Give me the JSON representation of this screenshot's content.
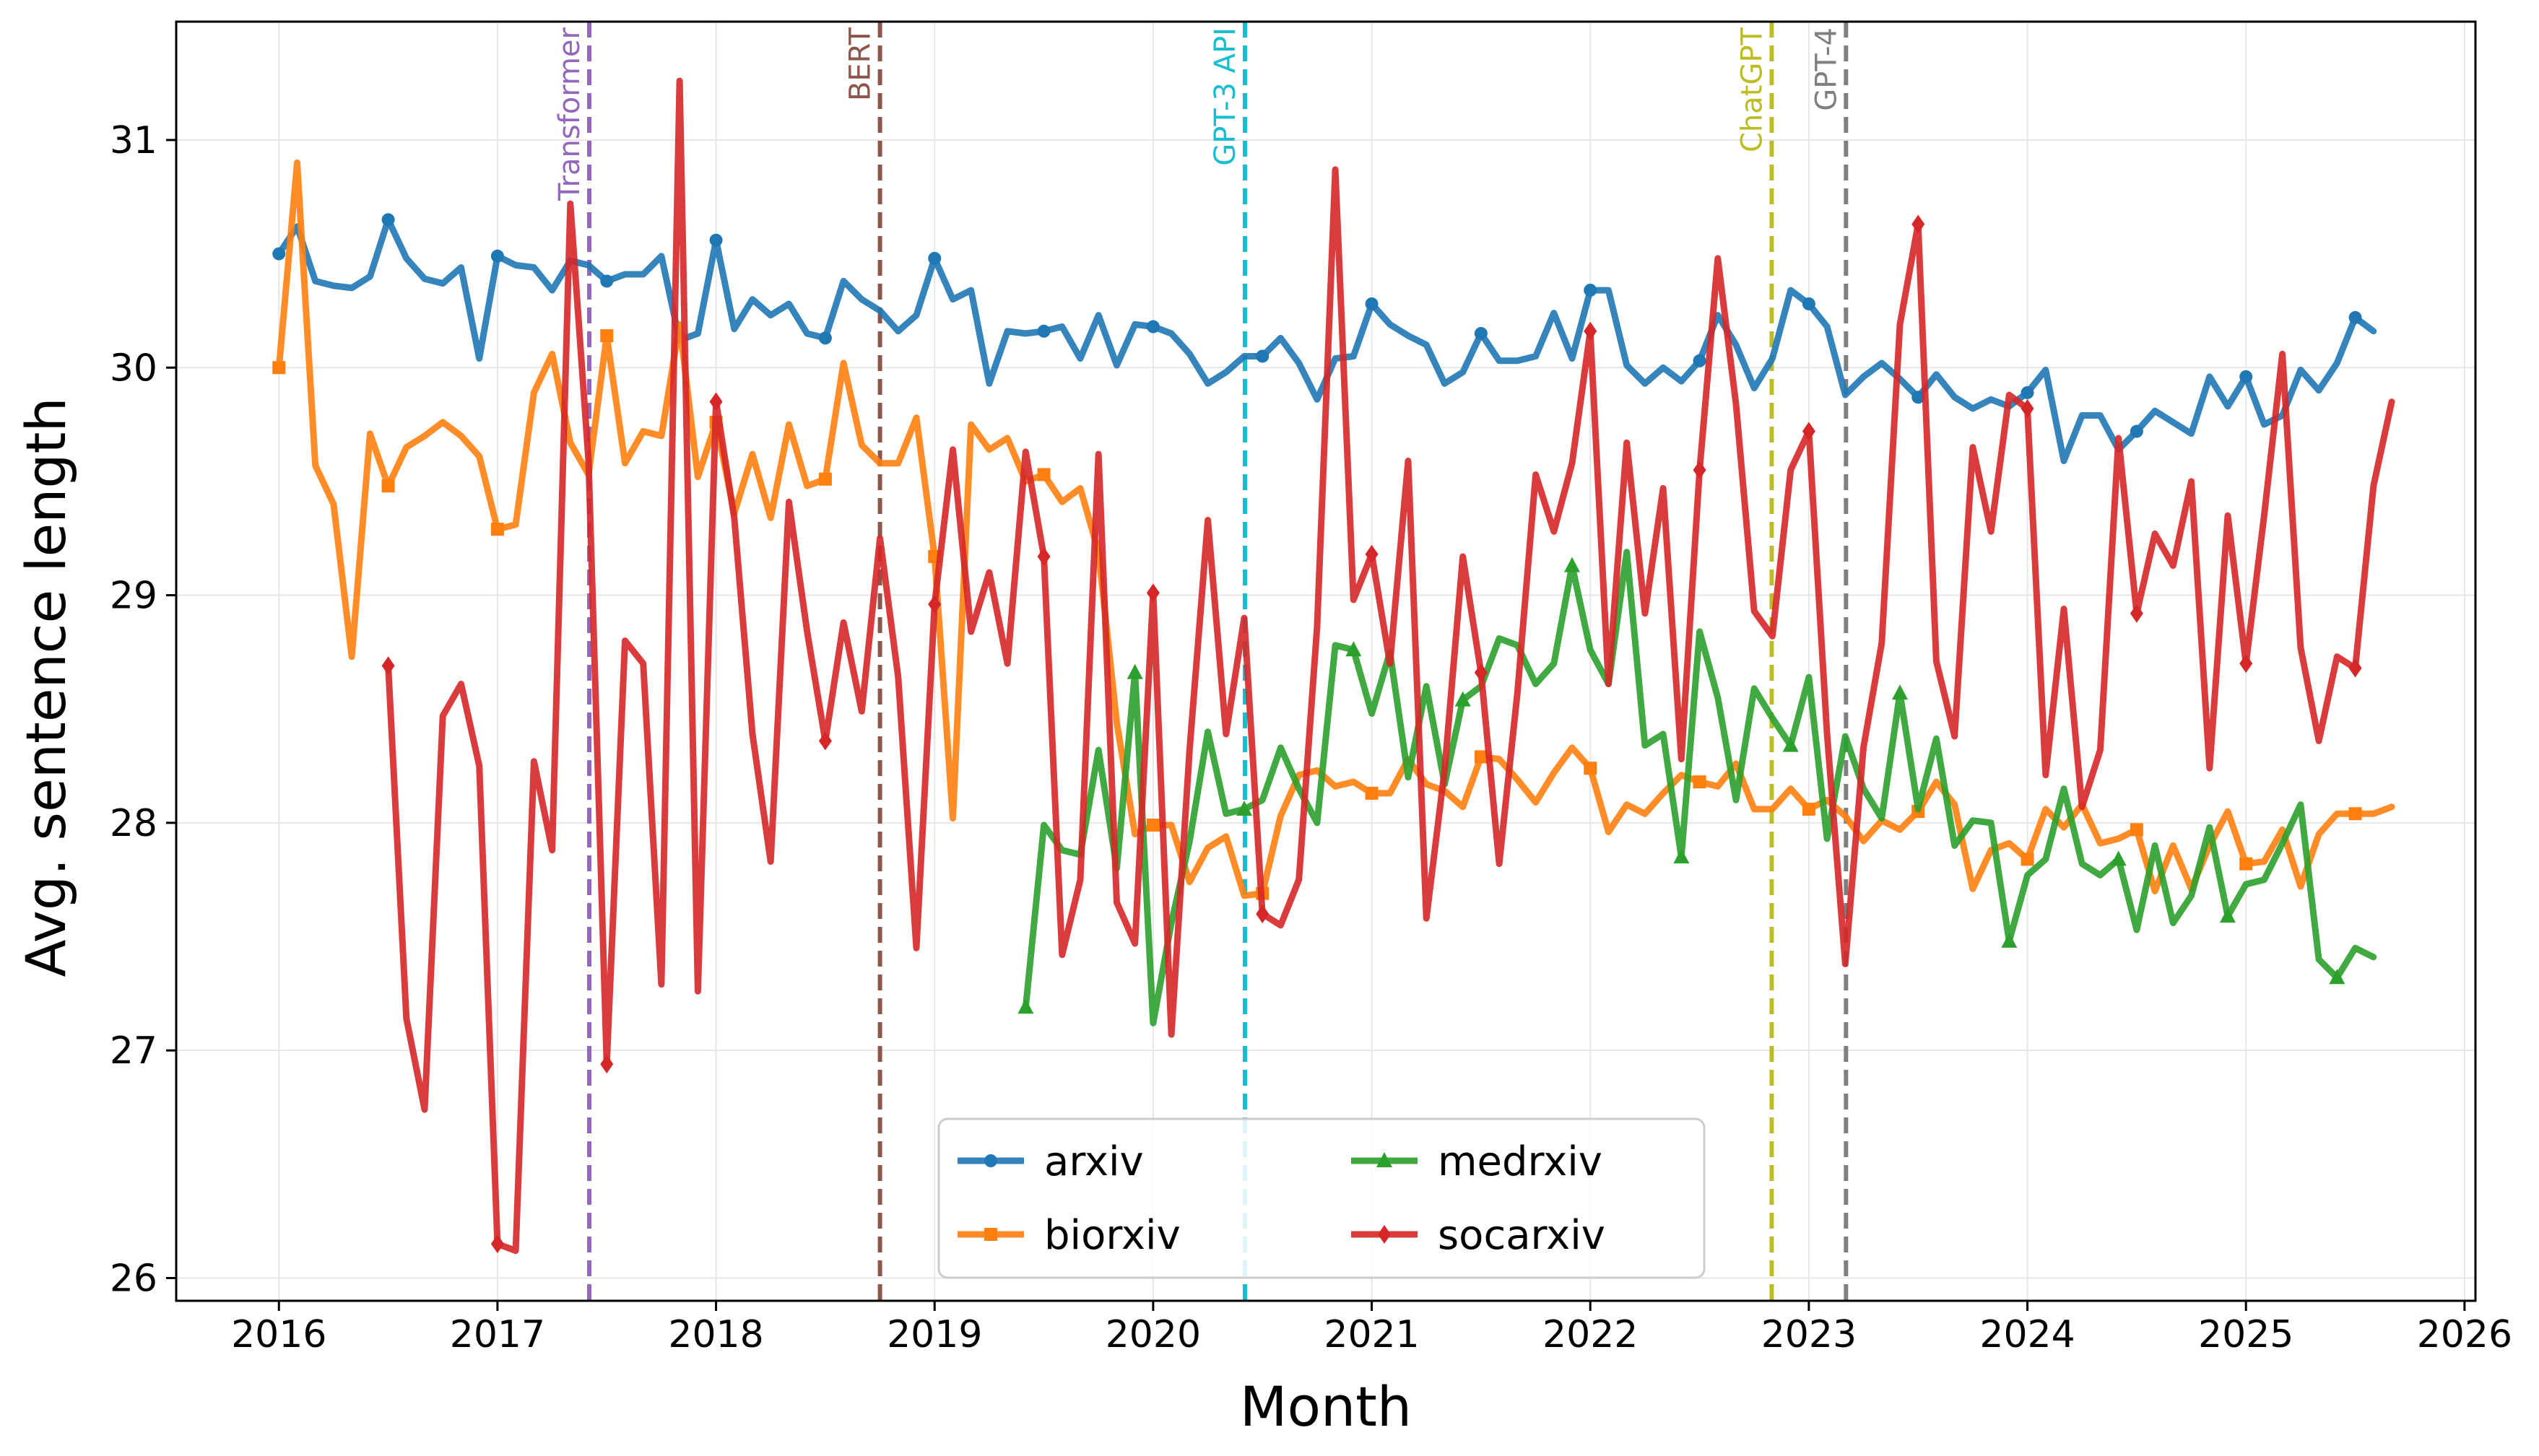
{
  "chart_data": {
    "type": "line",
    "title": "",
    "xlabel": "Month",
    "ylabel": "Avg. sentence length",
    "xlim": [
      2015.53,
      2026.05
    ],
    "ylim": [
      25.9,
      31.52
    ],
    "x_ticks": [
      "2016",
      "2017",
      "2018",
      "2019",
      "2020",
      "2021",
      "2022",
      "2023",
      "2024",
      "2025",
      "2026"
    ],
    "x_tick_values": [
      2016,
      2017,
      2018,
      2019,
      2020,
      2021,
      2022,
      2023,
      2024,
      2025,
      2026
    ],
    "y_ticks": [
      "26",
      "27",
      "28",
      "29",
      "30",
      "31"
    ],
    "y_tick_values": [
      26,
      27,
      28,
      29,
      30,
      31
    ],
    "grid": true,
    "legend_position": "bottom-center",
    "events": [
      {
        "label": "Transformer",
        "x": 2017.42,
        "color": "#9467bd"
      },
      {
        "label": "BERT",
        "x": 2018.75,
        "color": "#8c564b"
      },
      {
        "label": "GPT-3 API",
        "x": 2020.42,
        "color": "#17becf"
      },
      {
        "label": "ChatGPT",
        "x": 2022.83,
        "color": "#bcbd22"
      },
      {
        "label": "GPT-4",
        "x": 2023.17,
        "color": "#7f7f7f"
      }
    ],
    "series": [
      {
        "name": "arxiv",
        "color": "#1f77b4",
        "marker": "circle",
        "x_start": 2016.0,
        "values": [
          30.5,
          30.62,
          30.38,
          30.36,
          30.35,
          30.4,
          30.65,
          30.48,
          30.39,
          30.37,
          30.44,
          30.04,
          30.49,
          30.45,
          30.44,
          30.34,
          30.47,
          30.45,
          30.38,
          30.41,
          30.41,
          30.49,
          30.12,
          30.15,
          30.56,
          30.17,
          30.3,
          30.23,
          30.28,
          30.15,
          30.13,
          30.38,
          30.3,
          30.25,
          30.16,
          30.23,
          30.48,
          30.3,
          30.34,
          29.93,
          30.16,
          30.15,
          30.16,
          30.18,
          30.04,
          30.23,
          30.01,
          30.19,
          30.18,
          30.15,
          30.06,
          29.93,
          29.98,
          30.05,
          30.05,
          30.13,
          30.02,
          29.86,
          30.04,
          30.05,
          30.28,
          30.19,
          30.14,
          30.1,
          29.93,
          29.98,
          30.15,
          30.03,
          30.03,
          30.05,
          30.24,
          30.04,
          30.34,
          30.34,
          30.01,
          29.93,
          30.0,
          29.94,
          30.03,
          30.23,
          30.1,
          29.91,
          30.04,
          30.34,
          30.28,
          30.18,
          29.88,
          29.96,
          30.02,
          29.95,
          29.87,
          29.97,
          29.87,
          29.82,
          29.86,
          29.83,
          29.89,
          29.99,
          29.59,
          29.79,
          29.79,
          29.64,
          29.72,
          29.81,
          29.76,
          29.71,
          29.96,
          29.83,
          29.96,
          29.75,
          29.79,
          29.99,
          29.9,
          30.02,
          30.22,
          30.16
        ]
      },
      {
        "name": "biorxiv",
        "color": "#ff7f0e",
        "marker": "square",
        "x_start": 2016.0,
        "values": [
          30.0,
          30.9,
          29.57,
          29.4,
          28.73,
          29.71,
          29.48,
          29.65,
          29.7,
          29.76,
          29.7,
          29.61,
          29.29,
          29.31,
          29.89,
          30.06,
          29.67,
          29.53,
          30.14,
          29.58,
          29.72,
          29.7,
          30.19,
          29.52,
          29.76,
          29.36,
          29.62,
          29.34,
          29.75,
          29.48,
          29.51,
          30.02,
          29.66,
          29.58,
          29.58,
          29.78,
          29.17,
          28.02,
          29.75,
          29.64,
          29.69,
          29.5,
          29.53,
          29.41,
          29.47,
          29.19,
          28.44,
          27.95,
          27.99,
          27.99,
          27.74,
          27.89,
          27.94,
          27.68,
          27.69,
          28.03,
          28.21,
          28.23,
          28.16,
          28.18,
          28.13,
          28.13,
          28.28,
          28.17,
          28.14,
          28.07,
          28.29,
          28.28,
          28.19,
          28.09,
          28.22,
          28.33,
          28.24,
          27.96,
          28.08,
          28.04,
          28.13,
          28.21,
          28.18,
          28.16,
          28.26,
          28.06,
          28.06,
          28.15,
          28.06,
          28.1,
          28.03,
          27.92,
          28.01,
          27.97,
          28.05,
          28.18,
          28.08,
          27.71,
          27.88,
          27.91,
          27.84,
          28.06,
          27.98,
          28.08,
          27.91,
          27.93,
          27.97,
          27.7,
          27.9,
          27.71,
          27.9,
          28.05,
          27.82,
          27.83,
          27.97,
          27.72,
          27.95,
          28.04,
          28.04,
          28.04,
          28.07
        ]
      },
      {
        "name": "medrxiv",
        "color": "#2ca02c",
        "marker": "triangle",
        "x_start": 2019.4167,
        "values": [
          27.19,
          27.99,
          27.88,
          27.86,
          28.32,
          27.8,
          28.66,
          27.12,
          27.56,
          27.92,
          28.4,
          28.04,
          28.06,
          28.1,
          28.33,
          28.15,
          28.0,
          28.78,
          28.76,
          28.48,
          28.75,
          28.2,
          28.6,
          28.17,
          28.54,
          28.6,
          28.81,
          28.78,
          28.61,
          28.7,
          29.13,
          28.76,
          28.61,
          29.19,
          28.34,
          28.39,
          27.85,
          28.84,
          28.55,
          28.1,
          28.59,
          28.46,
          28.34,
          28.64,
          27.93,
          28.38,
          28.15,
          28.02,
          28.57,
          28.06,
          28.37,
          27.9,
          28.01,
          28.0,
          27.48,
          27.77,
          27.84,
          28.15,
          27.82,
          27.77,
          27.84,
          27.53,
          27.9,
          27.56,
          27.68,
          27.98,
          27.59,
          27.73,
          27.75,
          27.91,
          28.08,
          27.4,
          27.32,
          27.45,
          27.41
        ]
      },
      {
        "name": "socarxiv",
        "color": "#d62728",
        "marker": "diamond",
        "x_start": 2016.5,
        "values": [
          28.69,
          27.14,
          26.74,
          28.47,
          28.61,
          28.25,
          26.15,
          26.12,
          28.27,
          27.88,
          30.72,
          29.59,
          26.94,
          28.8,
          28.7,
          27.29,
          31.26,
          27.26,
          29.85,
          29.34,
          28.39,
          27.83,
          29.41,
          28.84,
          28.36,
          28.88,
          28.49,
          29.25,
          28.64,
          27.45,
          28.96,
          29.64,
          28.84,
          29.1,
          28.7,
          29.63,
          29.17,
          27.42,
          27.75,
          29.62,
          27.65,
          27.47,
          29.01,
          27.07,
          28.32,
          29.33,
          28.39,
          28.9,
          27.6,
          27.55,
          27.75,
          28.86,
          30.87,
          28.98,
          29.18,
          28.7,
          29.59,
          27.58,
          28.23,
          29.17,
          28.66,
          27.82,
          28.57,
          29.53,
          29.28,
          29.58,
          30.16,
          28.61,
          29.67,
          28.92,
          29.47,
          28.28,
          29.55,
          30.48,
          29.84,
          28.93,
          28.82,
          29.55,
          29.72,
          28.39,
          27.38,
          28.33,
          28.79,
          30.19,
          30.63,
          28.71,
          28.38,
          29.65,
          29.28,
          29.88,
          29.82,
          28.21,
          28.94,
          28.07,
          28.32,
          29.69,
          28.92,
          29.27,
          29.13,
          29.5,
          28.24,
          29.35,
          28.7,
          29.35,
          30.06,
          28.77,
          28.36,
          28.73,
          28.68,
          29.48,
          29.85
        ]
      }
    ]
  }
}
